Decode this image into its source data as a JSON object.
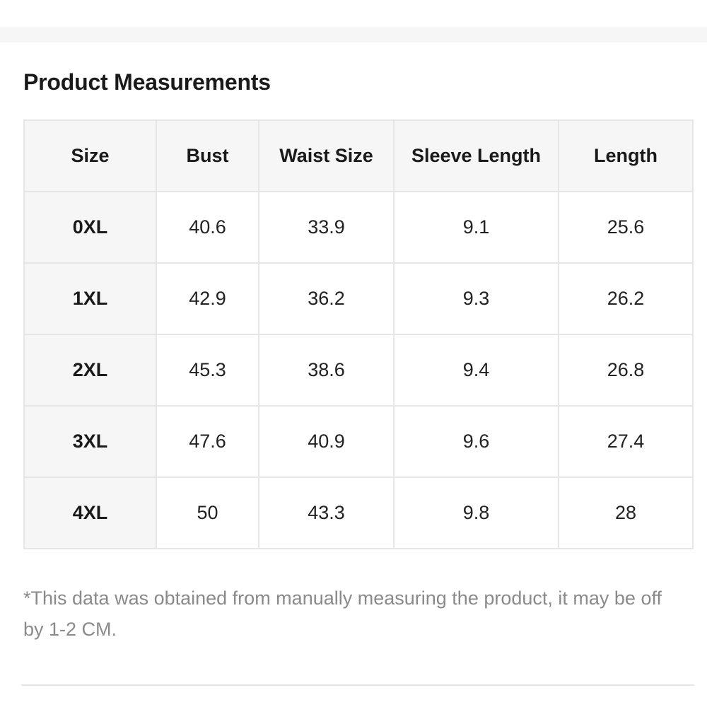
{
  "section": {
    "title": "Product Measurements"
  },
  "table": {
    "headers": [
      "Size",
      "Bust",
      "Waist Size",
      "Sleeve Length",
      "Length"
    ],
    "rows": [
      [
        "0XL",
        "40.6",
        "33.9",
        "9.1",
        "25.6"
      ],
      [
        "1XL",
        "42.9",
        "36.2",
        "9.3",
        "26.2"
      ],
      [
        "2XL",
        "45.3",
        "38.6",
        "9.4",
        "26.8"
      ],
      [
        "3XL",
        "47.6",
        "40.9",
        "9.6",
        "27.4"
      ],
      [
        "4XL",
        "50",
        "43.3",
        "9.8",
        "28"
      ]
    ]
  },
  "footnote": "*This data was obtained from manually measuring the product, it may be off by 1-2 CM.",
  "colors": {
    "header_bg": "#f6f6f6",
    "border": "#e6e6e6",
    "footnote_text": "#8a8a8a"
  }
}
